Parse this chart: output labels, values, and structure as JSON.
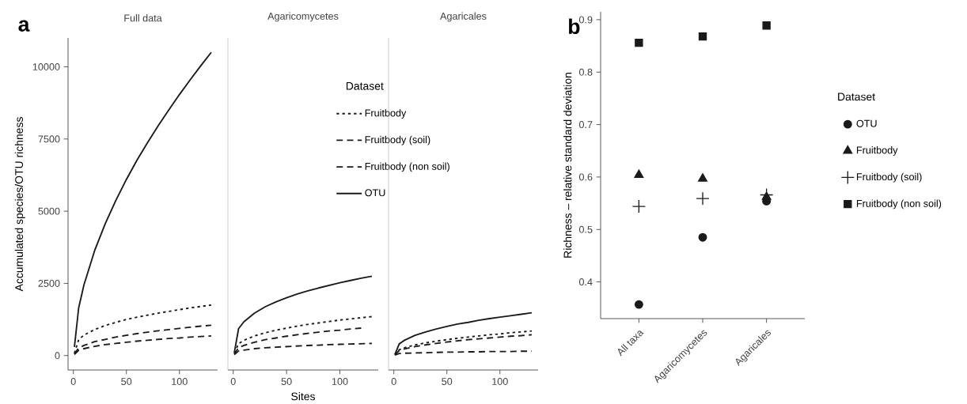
{
  "chart_data": [
    {
      "type": "line",
      "title": "Full data",
      "ylabel": "Accumulated species/OTU richness",
      "annotations": [
        "a"
      ],
      "x": [
        1,
        5,
        10,
        20,
        30,
        40,
        50,
        60,
        70,
        80,
        90,
        100,
        110,
        120,
        130
      ],
      "xlim": [
        -5,
        136
      ],
      "ylim": [
        -500,
        11000
      ],
      "xticks": [
        0,
        50,
        100
      ],
      "yticks": [
        0,
        2500,
        5000,
        7500,
        10000
      ],
      "series": [
        {
          "color": "#1a1a1a",
          "line_style": "dotted",
          "values": [
            80,
            550,
            710,
            900,
            1040,
            1150,
            1250,
            1330,
            1400,
            1470,
            1530,
            1590,
            1650,
            1700,
            1750
          ]
        },
        {
          "color": "#1a1a1a",
          "line_style": "dashed",
          "values": [
            60,
            260,
            350,
            480,
            560,
            640,
            700,
            760,
            810,
            860,
            900,
            940,
            980,
            1020,
            1050
          ]
        },
        {
          "color": "#1a1a1a",
          "line_style": "dashed",
          "values": [
            40,
            180,
            240,
            320,
            380,
            420,
            460,
            500,
            530,
            560,
            590,
            610,
            640,
            660,
            680
          ]
        },
        {
          "color": "#1a1a1a",
          "line_style": "solid",
          "values": [
            300,
            1650,
            2450,
            3630,
            4560,
            5370,
            6100,
            6770,
            7380,
            7960,
            8510,
            9040,
            9540,
            10030,
            10500
          ]
        }
      ]
    },
    {
      "type": "line",
      "title": "Agaricomycetes",
      "xlabel": "Sites",
      "legend": "top right",
      "legend_title": "Dataset",
      "tick_labels": "x",
      "x": [
        1,
        5,
        10,
        20,
        30,
        40,
        50,
        60,
        70,
        80,
        90,
        100,
        110,
        120,
        130
      ],
      "xlim": [
        -5,
        136
      ],
      "ylim": [
        -500,
        11000
      ],
      "xticks": [
        0,
        50,
        100
      ],
      "series": [
        {
          "name": "Fruitbody",
          "color": "#1a1a1a",
          "line_style": "dotted",
          "values": [
            80,
            410,
            530,
            680,
            790,
            880,
            950,
            1020,
            1080,
            1130,
            1180,
            1230,
            1270,
            1310,
            1350
          ]
        },
        {
          "name": "Fruitbody (soil)",
          "color": "#1a1a1a",
          "line_style": "dashed",
          "values": [
            50,
            270,
            350,
            460,
            550,
            610,
            670,
            720,
            770,
            810,
            850,
            880,
            920,
            950,
            null
          ]
        },
        {
          "name": "Fruitbody (non soil)",
          "color": "#1a1a1a",
          "line_style": "dashed",
          "values": [
            30,
            160,
            190,
            240,
            270,
            290,
            310,
            330,
            350,
            360,
            380,
            390,
            400,
            410,
            420
          ]
        },
        {
          "name": "OTU",
          "color": "#1a1a1a",
          "line_style": "solid",
          "values": [
            100,
            930,
            1170,
            1470,
            1690,
            1860,
            2000,
            2130,
            2240,
            2340,
            2430,
            2520,
            2600,
            2680,
            2750
          ]
        }
      ]
    },
    {
      "type": "line",
      "title": "Agaricales",
      "tick_labels": "x",
      "x": [
        1,
        5,
        10,
        20,
        30,
        40,
        50,
        60,
        70,
        80,
        90,
        100,
        110,
        120,
        130
      ],
      "xlim": [
        -5,
        136
      ],
      "ylim": [
        -500,
        11000
      ],
      "xticks": [
        0,
        50,
        100
      ],
      "series": [
        {
          "color": "#1a1a1a",
          "line_style": "dotted",
          "values": [
            30,
            200,
            270,
            370,
            440,
            500,
            550,
            600,
            640,
            680,
            720,
            750,
            790,
            820,
            850
          ]
        },
        {
          "color": "#1a1a1a",
          "line_style": "dashed",
          "values": [
            30,
            170,
            230,
            310,
            370,
            420,
            470,
            510,
            550,
            580,
            610,
            640,
            670,
            690,
            720
          ]
        },
        {
          "color": "#1a1a1a",
          "line_style": "dashed",
          "values": [
            20,
            70,
            80,
            90,
            100,
            110,
            120,
            120,
            130,
            130,
            140,
            140,
            140,
            150,
            150
          ]
        },
        {
          "color": "#1a1a1a",
          "line_style": "solid",
          "values": [
            40,
            400,
            530,
            700,
            820,
            920,
            1010,
            1090,
            1150,
            1220,
            1280,
            1330,
            1380,
            1430,
            1480
          ]
        }
      ]
    },
    {
      "type": "scatter",
      "ylabel": "Richness – relative standard deviation",
      "annotations": [
        "b"
      ],
      "legend": "right",
      "legend_title": "Dataset",
      "categories": [
        "All taxa",
        "Agaricomycetes",
        "Agaricales"
      ],
      "ylim": [
        0.33,
        0.915
      ],
      "yticks": [
        0.4,
        0.5,
        0.6,
        0.7,
        0.8,
        0.9
      ],
      "series": [
        {
          "name": "OTU",
          "color": "#1a1a1a",
          "marker": "circle",
          "values": [
            0.357,
            0.485,
            0.554
          ]
        },
        {
          "name": "Fruitbody",
          "color": "#1a1a1a",
          "marker": "triangle",
          "values": [
            0.604,
            0.597,
            0.562
          ]
        },
        {
          "name": "Fruitbody (soil)",
          "color": "#1a1a1a",
          "marker": "cross",
          "values": [
            0.544,
            0.559,
            0.566
          ]
        },
        {
          "name": "Fruitbody (non soil)",
          "color": "#1a1a1a",
          "marker": "square",
          "values": [
            0.856,
            0.868,
            0.889
          ]
        }
      ]
    }
  ]
}
